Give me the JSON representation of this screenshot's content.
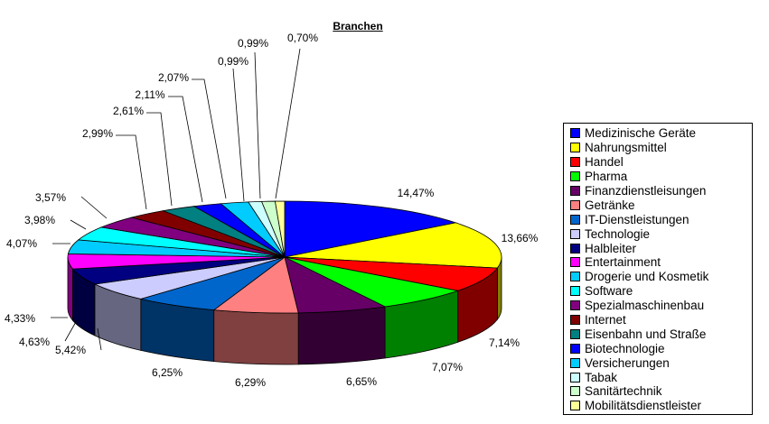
{
  "chart_data": {
    "type": "pie",
    "style": "3d",
    "title": "Branchen",
    "legend_position": "right",
    "slices": [
      {
        "label": "Medizinische Geräte",
        "value": 14.47,
        "value_label": "14,47%",
        "color": "#0000ff"
      },
      {
        "label": "Nahrungsmittel",
        "value": 13.66,
        "value_label": "13,66%",
        "color": "#ffff00"
      },
      {
        "label": "Handel",
        "value": 7.14,
        "value_label": "7,14%",
        "color": "#ff0000"
      },
      {
        "label": "Pharma",
        "value": 7.07,
        "value_label": "7,07%",
        "color": "#00ff00"
      },
      {
        "label": "Finanzdienstleisungen",
        "value": 6.65,
        "value_label": "6,65%",
        "color": "#660066"
      },
      {
        "label": "Getränke",
        "value": 6.29,
        "value_label": "6,29%",
        "color": "#ff8080"
      },
      {
        "label": "IT-Dienstleistungen",
        "value": 6.25,
        "value_label": "6,25%",
        "color": "#0066cc"
      },
      {
        "label": "Technologie",
        "value": 5.42,
        "value_label": "5,42%",
        "color": "#ccccff"
      },
      {
        "label": "Halbleiter",
        "value": 4.63,
        "value_label": "4,63%",
        "color": "#000080"
      },
      {
        "label": "Entertainment",
        "value": 4.33,
        "value_label": "4,33%",
        "color": "#ff00ff"
      },
      {
        "label": "Drogerie und Kosmetik",
        "value": 4.07,
        "value_label": "4,07%",
        "color": "#00ccff"
      },
      {
        "label": "Software",
        "value": 3.98,
        "value_label": "3,98%",
        "color": "#00ffff"
      },
      {
        "label": "Spezialmaschinenbau",
        "value": 3.57,
        "value_label": "3,57%",
        "color": "#800080"
      },
      {
        "label": "Internet",
        "value": 2.99,
        "value_label": "2,99%",
        "color": "#800000"
      },
      {
        "label": "Eisenbahn und Straße",
        "value": 2.61,
        "value_label": "2,61%",
        "color": "#008080"
      },
      {
        "label": "Biotechnologie",
        "value": 2.11,
        "value_label": "2,11%",
        "color": "#0000ff"
      },
      {
        "label": "Versicherungen",
        "value": 2.07,
        "value_label": "2,07%",
        "color": "#00ccff"
      },
      {
        "label": "Tabak",
        "value": 0.99,
        "value_label": "0,99%",
        "color": "#ccffff"
      },
      {
        "label": "Sanitärtechnik",
        "value": 0.99,
        "value_label": "0,99%",
        "color": "#ccffcc"
      },
      {
        "label": "Mobilitätsdienstleister",
        "value": 0.7,
        "value_label": "0,70%",
        "color": "#ffff99"
      }
    ]
  }
}
